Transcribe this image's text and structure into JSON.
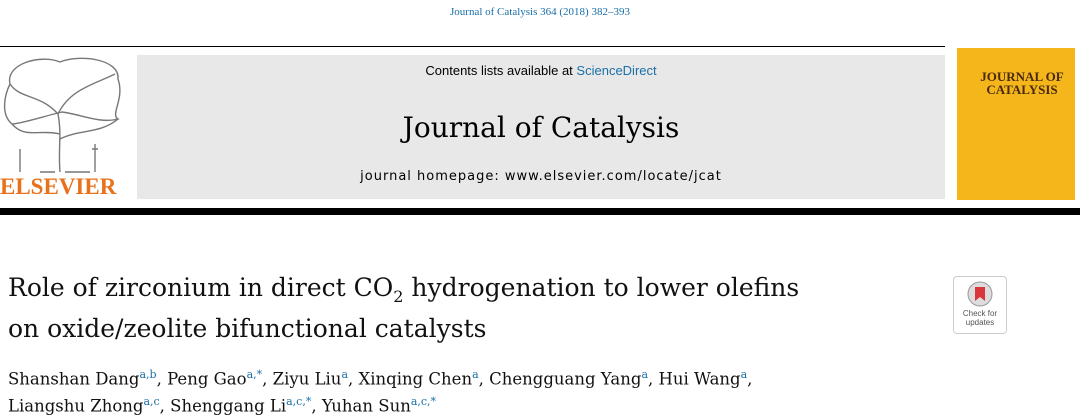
{
  "header": {
    "citation": "Journal of Catalysis 364 (2018) 382–393",
    "contents_prefix": "Contents lists available at",
    "contents_link": "ScienceDirect",
    "journal_name": "Journal of Catalysis",
    "homepage": "journal homepage: www.elsevier.com/locate/jcat",
    "publisher": "ELSEVIER",
    "cover_title": [
      "JOURNAL OF",
      "CATALYSIS"
    ]
  },
  "article": {
    "title_parts": [
      "Role of zirconium in direct CO",
      "2",
      " hydrogenation to lower olefins"
    ],
    "title_line2": "on oxide/zeolite bifunctional catalysts",
    "badge": [
      "Check for",
      "updates"
    ],
    "author_lines": [
      [
        {
          "name": "Shanshan Dang",
          "sup": "a,b",
          "after": ","
        },
        {
          "name": "Peng Gao",
          "sup": "a,*",
          "after": ","
        },
        {
          "name": "Ziyu Liu",
          "sup": "a",
          "after": ","
        },
        {
          "name": "Xinqing Chen",
          "sup": "a",
          "after": ","
        },
        {
          "name": "Chengguang Yang",
          "sup": "a",
          "after": ","
        },
        {
          "name": "Hui Wang",
          "sup": "a",
          "after": ","
        }
      ],
      [
        {
          "name": "Liangshu Zhong",
          "sup": "a,c",
          "after": ","
        },
        {
          "name": "Shenggang Li",
          "sup": "a,c,*",
          "after": ","
        },
        {
          "name": "Yuhan Sun",
          "sup": "a,c,*"
        }
      ]
    ]
  }
}
